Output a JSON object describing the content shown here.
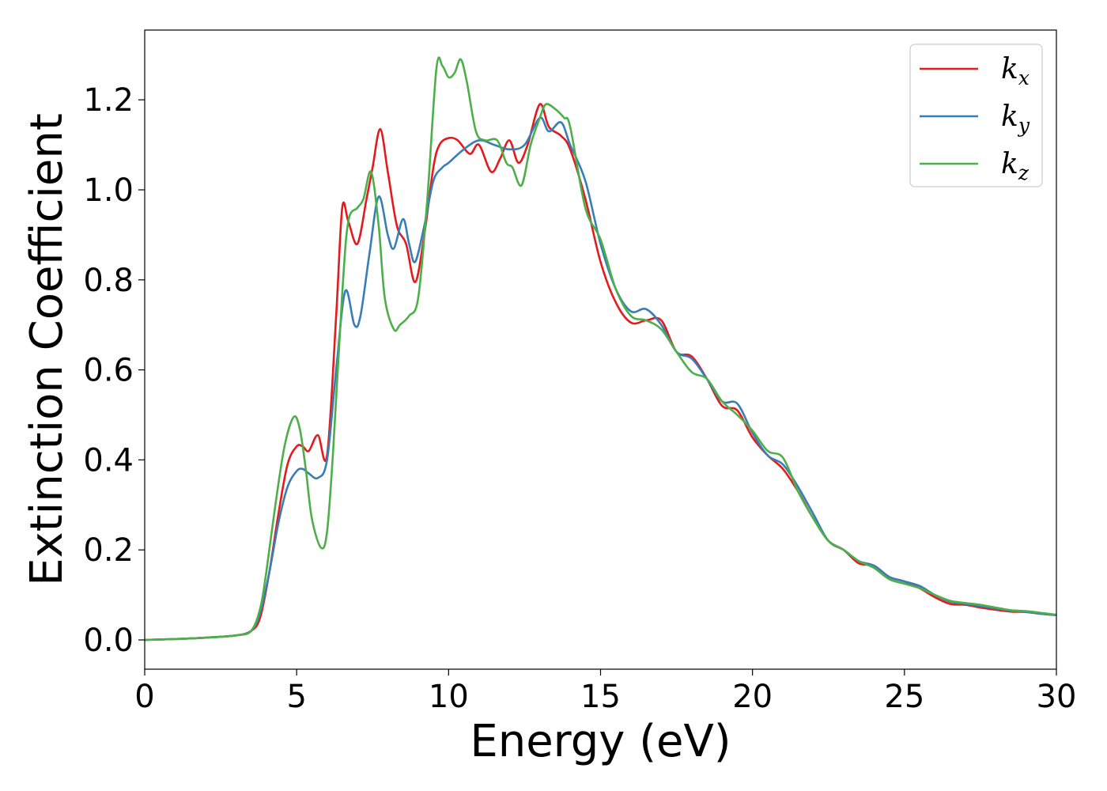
{
  "chart_data": {
    "type": "line",
    "title": "",
    "xlabel": "Energy (eV)",
    "ylabel": "Extinction Coefficient",
    "xlim": [
      0,
      30
    ],
    "ylim": [
      -0.065,
      1.355
    ],
    "xticks": [
      0,
      5,
      10,
      15,
      20,
      25,
      30
    ],
    "xtick_labels": [
      "0",
      "5",
      "10",
      "15",
      "20",
      "25",
      "30"
    ],
    "yticks": [
      0.0,
      0.2,
      0.4,
      0.6,
      0.8,
      1.0,
      1.2
    ],
    "ytick_labels": [
      "0.0",
      "0.2",
      "0.4",
      "0.6",
      "0.8",
      "1.0",
      "1.2"
    ],
    "grid": false,
    "legend_position": "top-right",
    "series": [
      {
        "name": "k_x",
        "label_main": "k",
        "label_sub": "x",
        "color": "#e41a1c",
        "x": [
          0,
          1,
          2,
          3,
          3.5,
          3.8,
          4.1,
          4.4,
          4.7,
          5.0,
          5.2,
          5.4,
          5.7,
          6.0,
          6.3,
          6.5,
          6.7,
          7.0,
          7.3,
          7.5,
          7.75,
          8.0,
          8.3,
          8.6,
          8.9,
          9.2,
          9.5,
          9.7,
          10.0,
          10.3,
          10.7,
          11.0,
          11.4,
          11.7,
          12.0,
          12.3,
          12.6,
          13.0,
          13.3,
          13.7,
          14.0,
          14.5,
          15.0,
          15.5,
          16.0,
          16.5,
          17.0,
          17.5,
          18.0,
          18.5,
          19.0,
          19.5,
          20.0,
          20.5,
          21.0,
          21.5,
          22.0,
          22.5,
          23.0,
          23.5,
          24.0,
          24.5,
          25.0,
          25.5,
          26.0,
          26.5,
          27.0,
          27.5,
          28.0,
          28.5,
          29.0,
          29.5,
          30.0
        ],
        "y": [
          0,
          0.002,
          0.005,
          0.01,
          0.02,
          0.05,
          0.15,
          0.28,
          0.39,
          0.43,
          0.43,
          0.42,
          0.455,
          0.41,
          0.72,
          0.96,
          0.93,
          0.88,
          0.98,
          1.05,
          1.135,
          1.04,
          0.92,
          0.88,
          0.795,
          0.9,
          1.05,
          1.1,
          1.115,
          1.11,
          1.08,
          1.1,
          1.04,
          1.07,
          1.11,
          1.06,
          1.1,
          1.19,
          1.14,
          1.12,
          1.09,
          0.98,
          0.84,
          0.75,
          0.705,
          0.71,
          0.71,
          0.64,
          0.63,
          0.58,
          0.52,
          0.51,
          0.45,
          0.41,
          0.38,
          0.33,
          0.27,
          0.22,
          0.2,
          0.17,
          0.165,
          0.14,
          0.13,
          0.115,
          0.095,
          0.08,
          0.078,
          0.072,
          0.067,
          0.063,
          0.062,
          0.058,
          0.055
        ]
      },
      {
        "name": "k_y",
        "label_main": "k",
        "label_sub": "y",
        "color": "#377eb8",
        "x": [
          0,
          1,
          2,
          3,
          3.5,
          3.8,
          4.1,
          4.4,
          4.7,
          5.0,
          5.2,
          5.4,
          5.7,
          6.0,
          6.3,
          6.6,
          6.9,
          7.1,
          7.4,
          7.7,
          8.0,
          8.2,
          8.5,
          8.7,
          8.9,
          9.2,
          9.5,
          9.8,
          10.0,
          10.5,
          11.0,
          11.5,
          12.0,
          12.5,
          13.0,
          13.3,
          13.7,
          14.0,
          14.5,
          15.0,
          15.5,
          16.0,
          16.5,
          17.0,
          17.5,
          18.0,
          18.5,
          19.0,
          19.5,
          20.0,
          20.5,
          21.0,
          21.5,
          22.0,
          22.5,
          23.0,
          23.5,
          24.0,
          24.5,
          25.0,
          25.5,
          26.0,
          26.5,
          27.0,
          27.5,
          28.0,
          28.5,
          29.0,
          29.5,
          30.0
        ],
        "y": [
          0,
          0.002,
          0.005,
          0.01,
          0.02,
          0.06,
          0.15,
          0.26,
          0.34,
          0.375,
          0.38,
          0.37,
          0.36,
          0.4,
          0.6,
          0.775,
          0.7,
          0.72,
          0.86,
          0.985,
          0.9,
          0.87,
          0.935,
          0.88,
          0.84,
          0.92,
          1.02,
          1.05,
          1.06,
          1.09,
          1.11,
          1.1,
          1.09,
          1.1,
          1.16,
          1.13,
          1.15,
          1.1,
          1.02,
          0.88,
          0.78,
          0.73,
          0.735,
          0.7,
          0.64,
          0.625,
          0.58,
          0.53,
          0.525,
          0.46,
          0.41,
          0.39,
          0.34,
          0.28,
          0.22,
          0.2,
          0.175,
          0.165,
          0.14,
          0.13,
          0.12,
          0.1,
          0.085,
          0.08,
          0.075,
          0.07,
          0.065,
          0.062,
          0.058,
          0.055
        ]
      },
      {
        "name": "k_z",
        "label_main": "k",
        "label_sub": "z",
        "color": "#4daf4a",
        "x": [
          0,
          1,
          2,
          3,
          3.5,
          3.8,
          4.0,
          4.3,
          4.6,
          4.9,
          5.1,
          5.3,
          5.5,
          5.8,
          6.0,
          6.2,
          6.5,
          6.7,
          7.0,
          7.2,
          7.45,
          7.7,
          7.9,
          8.2,
          8.4,
          8.7,
          9.0,
          9.3,
          9.6,
          9.8,
          10.0,
          10.2,
          10.4,
          10.6,
          10.9,
          11.2,
          11.6,
          11.9,
          12.1,
          12.4,
          12.7,
          13.0,
          13.2,
          13.5,
          13.8,
          14.0,
          14.5,
          15.0,
          15.5,
          16.0,
          16.5,
          17.0,
          17.5,
          18.0,
          18.5,
          19.0,
          19.5,
          20.0,
          20.5,
          21.0,
          21.5,
          22.0,
          22.5,
          23.0,
          23.5,
          24.0,
          24.5,
          25.0,
          25.5,
          26.0,
          26.5,
          27.0,
          27.5,
          28.0,
          28.5,
          29.0,
          29.5,
          30.0
        ],
        "y": [
          0,
          0.002,
          0.005,
          0.01,
          0.02,
          0.07,
          0.15,
          0.3,
          0.43,
          0.495,
          0.47,
          0.38,
          0.27,
          0.205,
          0.24,
          0.42,
          0.77,
          0.93,
          0.96,
          0.98,
          1.04,
          0.92,
          0.76,
          0.69,
          0.7,
          0.72,
          0.76,
          0.98,
          1.27,
          1.275,
          1.25,
          1.26,
          1.29,
          1.24,
          1.13,
          1.11,
          1.11,
          1.06,
          1.05,
          1.01,
          1.1,
          1.16,
          1.19,
          1.18,
          1.16,
          1.14,
          0.96,
          0.89,
          0.78,
          0.72,
          0.71,
          0.69,
          0.64,
          0.595,
          0.58,
          0.53,
          0.5,
          0.465,
          0.42,
          0.405,
          0.33,
          0.27,
          0.22,
          0.2,
          0.175,
          0.16,
          0.135,
          0.125,
          0.115,
          0.1,
          0.087,
          0.082,
          0.078,
          0.072,
          0.066,
          0.064,
          0.06,
          0.056
        ]
      }
    ]
  }
}
